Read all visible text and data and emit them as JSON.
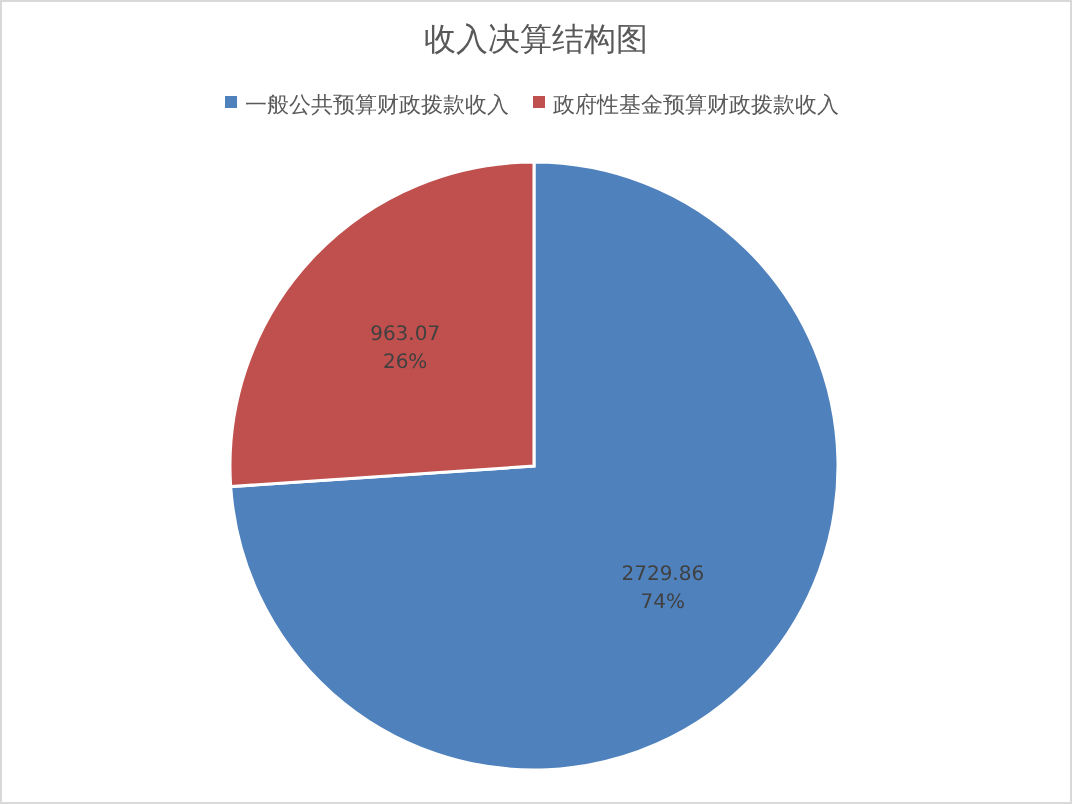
{
  "chart_data": {
    "type": "pie",
    "title": "收入决算结构图",
    "categories": [
      "一般公共预算财政拨款收入",
      "政府性基金预算财政拨款收入"
    ],
    "values": [
      2729.86,
      963.07
    ],
    "colors": [
      "#4f81bd",
      "#c0504d"
    ],
    "value_labels": [
      "2729.86\n74%",
      "963.07\n26%"
    ],
    "legend": "top"
  }
}
